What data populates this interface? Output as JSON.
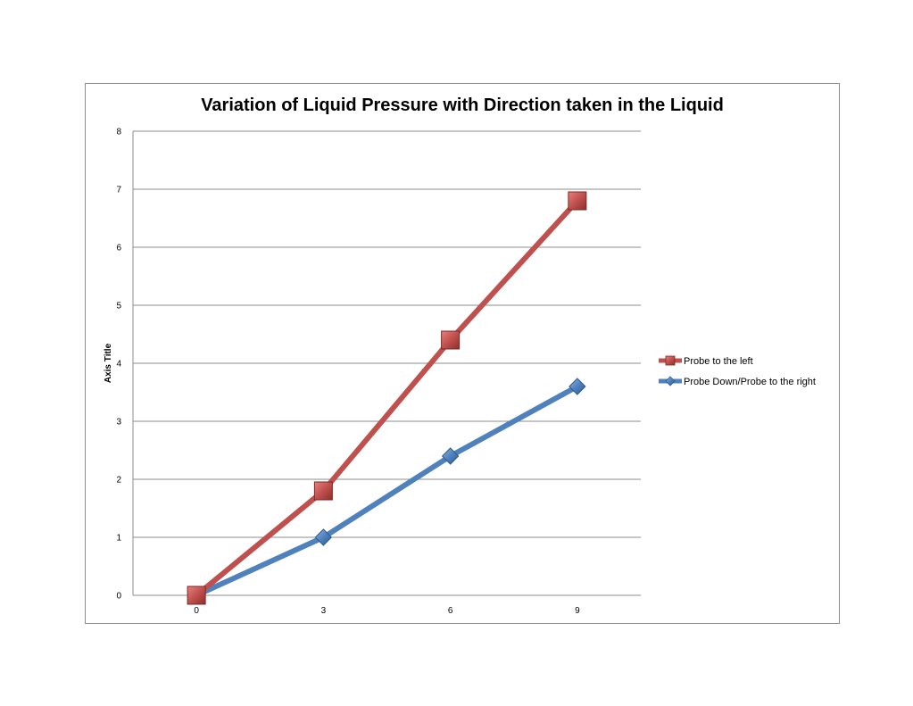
{
  "chart_data": {
    "type": "line",
    "title": "Variation of Liquid Pressure with Direction taken in the Liquid",
    "xlabel": "",
    "ylabel": "Axis Title",
    "categories": [
      "0",
      "3",
      "6",
      "9"
    ],
    "ylim": [
      0,
      8
    ],
    "yticks": [
      "0",
      "1",
      "2",
      "3",
      "4",
      "5",
      "6",
      "7",
      "8"
    ],
    "grid": true,
    "legend_position": "right",
    "series": [
      {
        "name": "Probe to the left",
        "values": [
          0,
          1.8,
          4.4,
          6.8
        ],
        "color": "#c0504d",
        "marker": "square"
      },
      {
        "name": "Probe Down/Probe to the right",
        "values": [
          0,
          1.0,
          2.4,
          3.6
        ],
        "color": "#4f81bd",
        "marker": "diamond"
      }
    ]
  }
}
